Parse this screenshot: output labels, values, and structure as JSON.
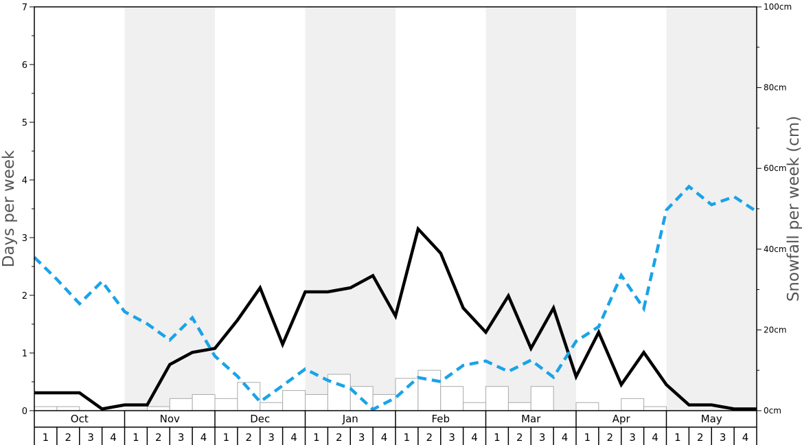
{
  "chart_data": {
    "type": "line",
    "ylabel_left": "Days per week",
    "ylabel_right": "Snowfall per week (cm)",
    "ylim_left": [
      0,
      7
    ],
    "ylim_right": [
      0,
      100
    ],
    "left_ticks": [
      "0",
      "1",
      "2",
      "3",
      "4",
      "5",
      "6",
      "7"
    ],
    "right_ticks": [
      "0cm",
      "20cm",
      "40cm",
      "60cm",
      "80cm",
      "100cm"
    ],
    "months": [
      "Oct",
      "Nov",
      "Dec",
      "Jan",
      "Feb",
      "Mar",
      "Apr",
      "May"
    ],
    "weeks": [
      "1",
      "2",
      "3",
      "4"
    ],
    "shaded_months": [
      "Nov",
      "Jan",
      "Mar",
      "May"
    ],
    "colors": {
      "black_line": "#000000",
      "blue_line": "#1aa3e8",
      "shade": "#f0f0f0",
      "bar_stroke": "#aaaaaa"
    },
    "series": [
      {
        "style": "solid-black",
        "axis": "left",
        "values": [
          0.31,
          0.31,
          0.31,
          0.03,
          0.1,
          0.1,
          0.8,
          1.01,
          1.08,
          1.57,
          2.13,
          1.15,
          2.06,
          2.06,
          2.13,
          2.34,
          1.64,
          3.15,
          2.73,
          1.78,
          1.36,
          1.99,
          1.08,
          1.78,
          0.59,
          1.36,
          0.45,
          1.01,
          0.45,
          0.1,
          0.1,
          0.03,
          0.03
        ]
      },
      {
        "style": "dashed-blue",
        "axis": "right",
        "values": [
          38,
          32.5,
          26.5,
          32,
          24.5,
          21.5,
          17.5,
          23,
          13.5,
          8.5,
          2.2,
          6.2,
          10.3,
          7.5,
          5.5,
          0.3,
          3.2,
          8.2,
          7.2,
          11.2,
          12.3,
          9.7,
          12.5,
          8.3,
          17.2,
          20.8,
          33.5,
          25.3,
          49.7,
          55.5,
          51,
          53,
          49.3
        ]
      },
      {
        "style": "bars",
        "axis": "right",
        "values": [
          1,
          1,
          0,
          0,
          0,
          1,
          3,
          4,
          3,
          7,
          2,
          5,
          4,
          9,
          6,
          4,
          8,
          10,
          6,
          2,
          6,
          2,
          6,
          0,
          2,
          0,
          3,
          1,
          0,
          0,
          0,
          0
        ]
      }
    ]
  }
}
